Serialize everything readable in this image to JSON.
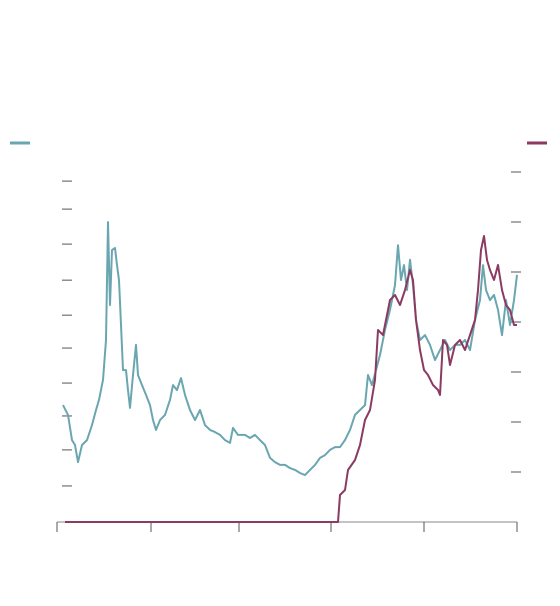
{
  "chart_data": {
    "type": "line",
    "xlim": [
      0,
      460
    ],
    "xticks": [
      0,
      94,
      182,
      274,
      367,
      460
    ],
    "ylim": [
      0,
      100
    ],
    "yticks": [
      10.3,
      20.6,
      30.3,
      39.7,
      49.7,
      59.1,
      69.1,
      79.4,
      89.4,
      97.4
    ],
    "y2lim": [
      0,
      7
    ],
    "y2ticks": [
      1,
      2,
      3,
      4,
      5,
      6,
      7
    ],
    "series": [
      {
        "color": "#6aa6b0",
        "x": [
          6,
          11,
          15,
          18,
          21,
          25,
          30,
          35,
          39,
          42,
          46,
          49,
          51,
          53,
          55,
          58,
          60,
          62,
          64,
          66,
          69,
          71,
          73,
          76,
          79,
          81,
          85,
          89,
          93,
          96,
          99,
          103,
          108,
          113,
          116,
          120,
          124,
          128,
          133,
          138,
          143,
          148,
          153,
          158,
          163,
          168,
          173,
          176,
          181,
          188,
          193,
          198,
          203,
          208,
          213,
          218,
          223,
          228,
          233,
          238,
          243,
          248,
          253,
          258,
          263,
          268,
          273,
          278,
          283,
          288,
          293,
          298,
          303,
          308,
          311,
          315,
          319,
          323,
          328,
          333,
          338,
          341,
          344,
          347,
          350,
          353,
          356,
          359,
          363,
          368,
          373,
          378,
          383,
          388,
          393,
          398,
          403,
          408,
          413,
          418,
          423,
          426,
          429,
          433,
          437,
          441,
          445,
          449,
          453,
          457,
          460
        ],
        "values": [
          33.4,
          30.6,
          23.4,
          22.0,
          17.1,
          22.0,
          23.4,
          27.7,
          32.0,
          34.9,
          40.6,
          52.0,
          85.7,
          62.0,
          77.7,
          78.3,
          73.4,
          69.1,
          56.3,
          43.4,
          43.4,
          37.7,
          32.6,
          42.0,
          50.6,
          42.0,
          39.1,
          36.3,
          33.4,
          29.1,
          26.3,
          29.1,
          30.6,
          34.9,
          39.1,
          37.7,
          41.1,
          36.3,
          32.0,
          29.1,
          32.0,
          27.7,
          26.3,
          25.7,
          24.9,
          23.4,
          22.6,
          26.9,
          24.9,
          24.9,
          24.0,
          24.9,
          23.4,
          22.0,
          18.3,
          17.1,
          16.3,
          16.3,
          15.4,
          14.9,
          14.0,
          13.4,
          14.9,
          16.3,
          18.3,
          19.1,
          20.6,
          21.4,
          21.4,
          23.4,
          26.3,
          30.6,
          32.0,
          33.4,
          42.0,
          39.1,
          43.4,
          47.7,
          54.9,
          60.6,
          67.7,
          79.1,
          69.1,
          73.4,
          66.3,
          74.9,
          67.7,
          57.7,
          52.0,
          53.4,
          50.6,
          46.3,
          49.1,
          52.0,
          49.1,
          50.6,
          50.6,
          52.0,
          49.1,
          57.7,
          63.4,
          73.4,
          66.3,
          63.4,
          64.9,
          60.6,
          53.4,
          63.4,
          56.3,
          63.4,
          70.6
        ]
      },
      {
        "color": "#8b3a62",
        "axis": "y2",
        "x": [
          8,
          143,
          281,
          283,
          288,
          291,
          298,
          303,
          308,
          313,
          318,
          321,
          326,
          329,
          333,
          338,
          343,
          348,
          353,
          356,
          359,
          363,
          367,
          371,
          376,
          381,
          383,
          386,
          390,
          393,
          398,
          403,
          408,
          413,
          418,
          421,
          424,
          427,
          430,
          433,
          437,
          441,
          445,
          449,
          453,
          457,
          460
        ],
        "values": [
          0,
          0,
          0,
          0.54,
          0.64,
          1.04,
          1.24,
          1.54,
          2.04,
          2.24,
          2.84,
          3.84,
          3.74,
          4.04,
          4.44,
          4.54,
          4.34,
          4.64,
          5.04,
          4.84,
          4.04,
          3.44,
          3.04,
          2.94,
          2.74,
          2.64,
          2.54,
          3.64,
          3.54,
          3.14,
          3.54,
          3.64,
          3.44,
          3.74,
          4.04,
          4.64,
          5.44,
          5.72,
          5.24,
          5.04,
          4.84,
          5.14,
          4.64,
          4.34,
          4.24,
          3.94,
          3.94
        ]
      }
    ]
  }
}
